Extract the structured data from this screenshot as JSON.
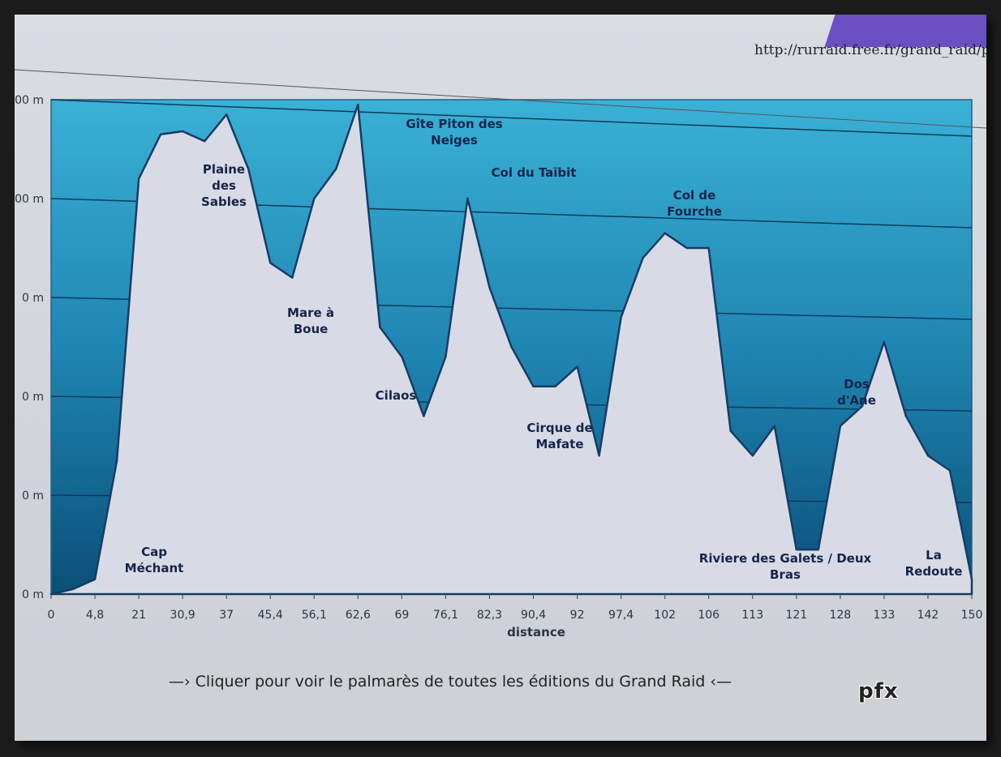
{
  "url": "http://rurraid.free.fr/grand_raid/pa",
  "footer": "—› Cliquer pour voir le palmarès de toutes les éditions du Grand Raid ‹—",
  "watermark": "pfx",
  "chart_data": {
    "type": "area",
    "title": "",
    "xlabel": "distance",
    "ylabel": "",
    "y_ticks": [
      "0 m",
      "0 m",
      "0 m",
      "0 m",
      "00 m",
      "00 m"
    ],
    "x_ticks": [
      "0",
      "4,8",
      "21",
      "30,9",
      "37",
      "45,4",
      "56,1",
      "62,6",
      "69",
      "76,1",
      "82,3",
      "90,4",
      "92",
      "97,4",
      "102",
      "106",
      "113",
      "121",
      "128",
      "133",
      "142",
      "150"
    ],
    "ylim": [
      0,
      5
    ],
    "series": [
      {
        "values": [
          0,
          0.05,
          0.15,
          1.35,
          4.2,
          4.65,
          4.68,
          4.58,
          4.85,
          4.3,
          3.35,
          3.2,
          4.0,
          4.3,
          4.95,
          2.7,
          2.4,
          1.8,
          2.4,
          4.0,
          3.1,
          2.5,
          2.1,
          2.1,
          2.3,
          1.4,
          2.8,
          3.4,
          3.65,
          3.5,
          3.5,
          1.65,
          1.4,
          1.7,
          0.45,
          0.45,
          1.7,
          1.9,
          2.55,
          1.8,
          1.4,
          1.25,
          0.15
        ]
      }
    ],
    "annotations": [
      {
        "id": "cap",
        "lines": [
          "Cap",
          "Méchant"
        ]
      },
      {
        "id": "plaine",
        "lines": [
          "Plaine",
          "des",
          "Sables"
        ]
      },
      {
        "id": "mare",
        "lines": [
          "Mare à",
          "Boue"
        ]
      },
      {
        "id": "gite",
        "lines": [
          "Gîte Piton des",
          "Neiges"
        ]
      },
      {
        "id": "cilaos",
        "lines": [
          "Cilaos"
        ]
      },
      {
        "id": "taibit",
        "lines": [
          "Col du Taïbit"
        ]
      },
      {
        "id": "mafate",
        "lines": [
          "Cirque de",
          "Mafate"
        ]
      },
      {
        "id": "fourche",
        "lines": [
          "Col de",
          "Fourche"
        ]
      },
      {
        "id": "galets",
        "lines": [
          "Riviere des Galets / Deux",
          "Bras"
        ]
      },
      {
        "id": "dosane",
        "lines": [
          "Dos",
          "d'Ane"
        ]
      },
      {
        "id": "redoute",
        "lines": [
          "La",
          "Redoute"
        ]
      }
    ],
    "colors": {
      "band_top": "#2f9bc4",
      "band_mid": "#1d7ea8",
      "band_bot": "#0d5b82",
      "area": "#d8dbe6",
      "line": "#163c66"
    }
  }
}
